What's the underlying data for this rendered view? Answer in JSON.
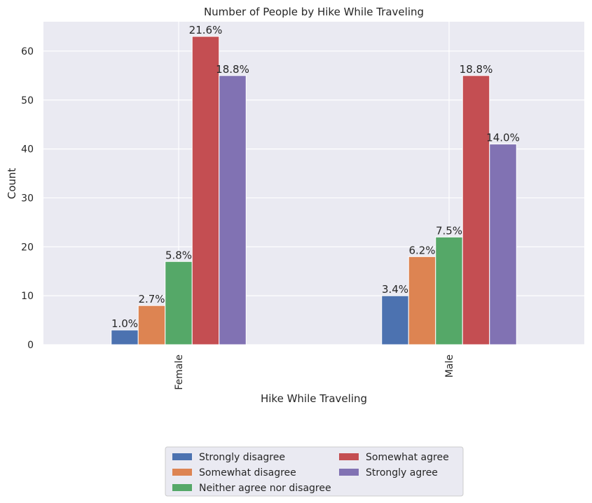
{
  "chart_data": {
    "type": "bar",
    "title": "Number of People by Hike While Traveling",
    "xlabel": "Hike While Traveling",
    "ylabel": "Count",
    "categories": [
      "Female",
      "Male"
    ],
    "ylim": [
      0,
      66
    ],
    "yticks": [
      0,
      10,
      20,
      30,
      40,
      50,
      60
    ],
    "grid": true,
    "legend_position": "bottom-center",
    "series": [
      {
        "name": "Strongly disagree",
        "color": "#4C72B0",
        "values": [
          3,
          10
        ],
        "labels": [
          "1.0%",
          "3.4%"
        ]
      },
      {
        "name": "Somewhat disagree",
        "color": "#DD8452",
        "values": [
          8,
          18
        ],
        "labels": [
          "2.7%",
          "6.2%"
        ]
      },
      {
        "name": "Neither agree nor disagree",
        "color": "#55A868",
        "values": [
          17,
          22
        ],
        "labels": [
          "5.8%",
          "7.5%"
        ]
      },
      {
        "name": "Somewhat agree",
        "color": "#C44E52",
        "values": [
          63,
          55
        ],
        "labels": [
          "21.6%",
          "18.8%"
        ]
      },
      {
        "name": "Strongly agree",
        "color": "#8172B3",
        "values": [
          55,
          41
        ],
        "labels": [
          "18.8%",
          "14.0%"
        ]
      }
    ]
  }
}
